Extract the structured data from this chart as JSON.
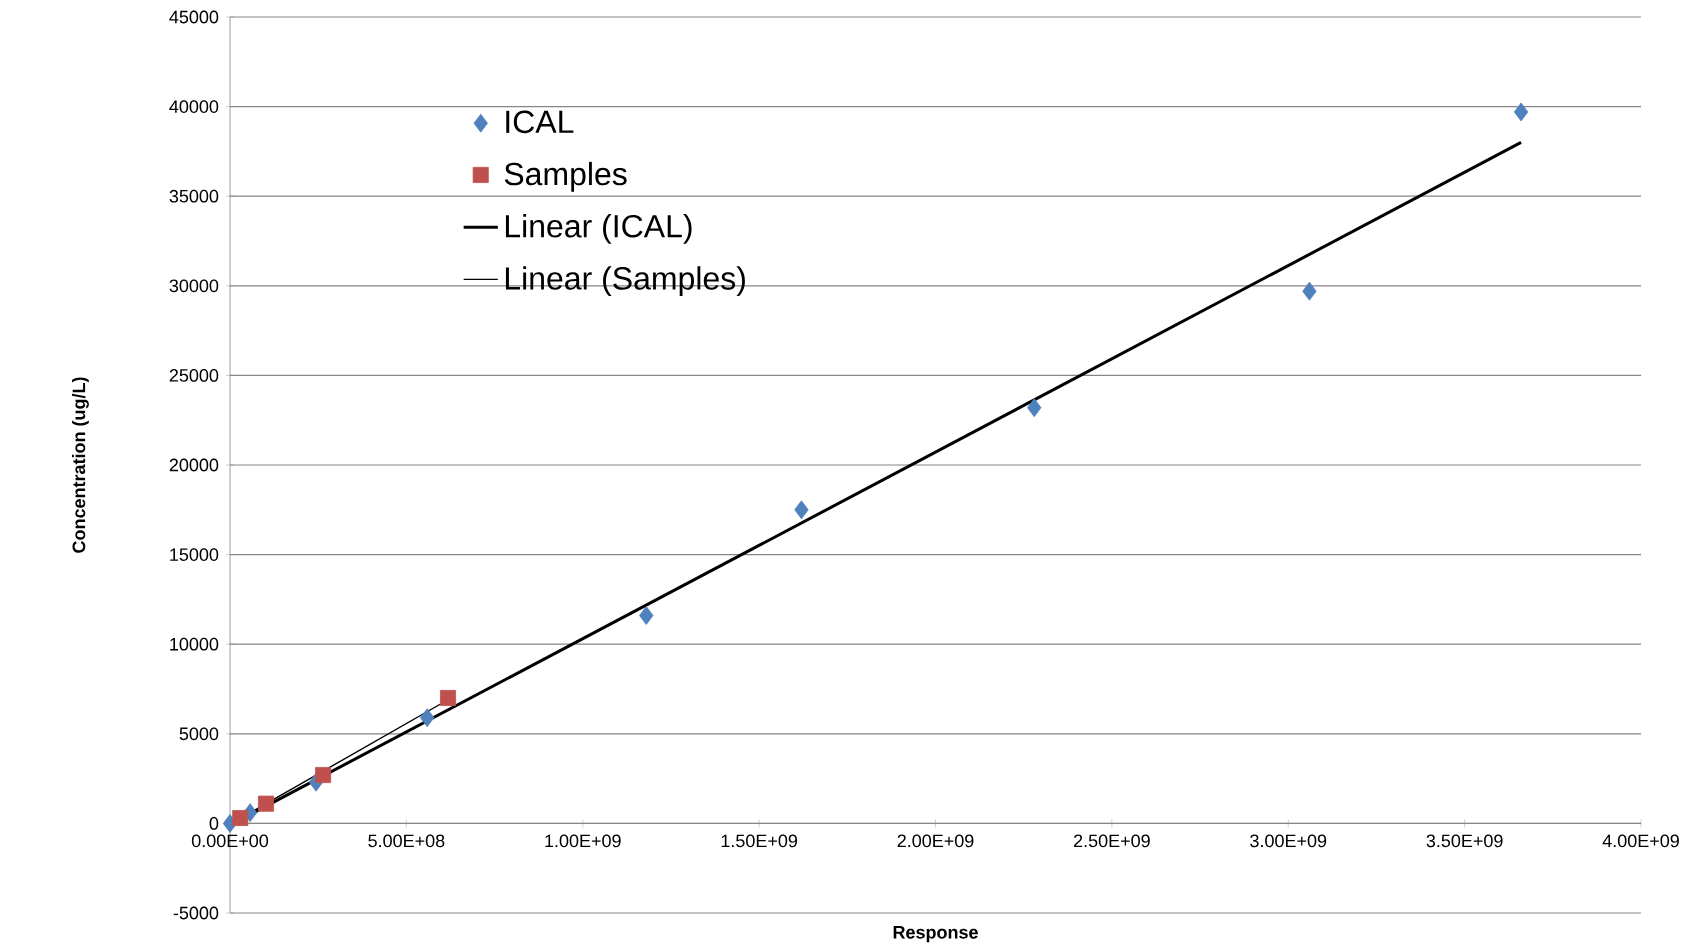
{
  "chart_data": {
    "type": "scatter",
    "xlabel": "Response",
    "ylabel": "Concentration (ug/L)",
    "xlim": [
      0,
      4000000000
    ],
    "ylim": [
      -5000,
      45000
    ],
    "xticks": [
      {
        "value": 0,
        "label": "0.00E+00"
      },
      {
        "value": 500000000,
        "label": "5.00E+08"
      },
      {
        "value": 1000000000,
        "label": "1.00E+09"
      },
      {
        "value": 1500000000,
        "label": "1.50E+09"
      },
      {
        "value": 2000000000,
        "label": "2.00E+09"
      },
      {
        "value": 2500000000,
        "label": "2.50E+09"
      },
      {
        "value": 3000000000,
        "label": "3.00E+09"
      },
      {
        "value": 3500000000,
        "label": "3.50E+09"
      },
      {
        "value": 4000000000,
        "label": "4.00E+09"
      }
    ],
    "yticks": [
      -5000,
      0,
      5000,
      10000,
      15000,
      20000,
      25000,
      30000,
      35000,
      40000,
      45000
    ],
    "grid": "y",
    "legend": "top left",
    "series": [
      {
        "name": "ICAL",
        "type": "scatter",
        "marker": "diamond",
        "color": "#4f81bd",
        "x": [
          0,
          57000000,
          244000000,
          559000000,
          1180000000,
          1620000000,
          2280000000,
          3060000000,
          3660000000
        ],
        "values": [
          0,
          600,
          2300,
          5900,
          11600,
          17500,
          23200,
          29700,
          39700
        ]
      },
      {
        "name": "Samples",
        "type": "scatter",
        "marker": "square",
        "color": "#c0504d",
        "x": [
          29000000,
          102000000,
          264000000,
          618000000
        ],
        "values": [
          300,
          1100,
          2700,
          7000
        ]
      },
      {
        "name": "Linear (ICAL)",
        "type": "line",
        "marker": "none",
        "color": "#000000",
        "x": [
          0,
          3660000000
        ],
        "values": [
          -100,
          38000
        ]
      },
      {
        "name": "Linear (Samples)",
        "type": "line",
        "marker": "none",
        "color": "#000000",
        "x": [
          0,
          618000000
        ],
        "values": [
          -50,
          6900
        ]
      }
    ]
  }
}
